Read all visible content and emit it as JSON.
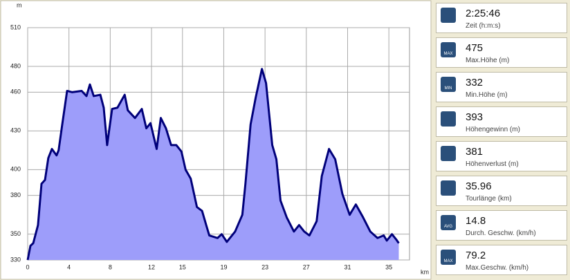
{
  "chart_data": {
    "type": "area",
    "y_unit": "m",
    "x_unit": "km",
    "x": [
      0,
      0.27,
      0.54,
      1.0,
      1.34,
      1.68,
      2.0,
      2.35,
      2.8,
      3.0,
      3.35,
      3.82,
      4.3,
      5.23,
      5.7,
      6.03,
      6.4,
      7.04,
      7.37,
      7.7,
      8.18,
      8.7,
      9.4,
      9.7,
      10.4,
      11.06,
      11.5,
      11.9,
      12.5,
      12.9,
      13.4,
      13.9,
      14.4,
      14.9,
      15.3,
      15.8,
      16.4,
      16.9,
      17.3,
      17.6,
      18.4,
      18.8,
      19.3,
      20.1,
      20.8,
      21.1,
      21.6,
      22.1,
      22.7,
      23.1,
      23.7,
      24.1,
      24.5,
      25.1,
      25.8,
      26.3,
      26.8,
      27.3,
      28.0,
      28.5,
      29.2,
      29.8,
      30.5,
      31.2,
      31.8,
      32.5,
      33.2,
      33.9,
      34.5,
      34.8,
      35.3,
      35.7,
      35.96
    ],
    "values": [
      330,
      341,
      343,
      357,
      389,
      392,
      409,
      416,
      411,
      415,
      435,
      461,
      460,
      461,
      457,
      466,
      457,
      458,
      448,
      419,
      447,
      448,
      458,
      446,
      440,
      447,
      432,
      436,
      416,
      440,
      432,
      419,
      419,
      414,
      400,
      393,
      371,
      368,
      357,
      349,
      347,
      350,
      344,
      352,
      365,
      389,
      435,
      456,
      478,
      467,
      419,
      408,
      376,
      363,
      352,
      357,
      352,
      349,
      360,
      395,
      416,
      408,
      381,
      365,
      373,
      363,
      352,
      347,
      349,
      345,
      350,
      346,
      343
    ],
    "color": "#00007a",
    "fill": "#9d9dfa",
    "xlim": [
      0,
      37
    ],
    "ylim": [
      330,
      510
    ],
    "xticks": [
      0,
      4,
      8,
      12,
      15,
      19,
      23,
      27,
      31,
      35
    ],
    "yticks": [
      330,
      350,
      380,
      400,
      430,
      460,
      480,
      510
    ],
    "grid": true
  },
  "stats": [
    {
      "value": "2:25:46",
      "label": "Zeit (h:m:s)"
    },
    {
      "value": "475",
      "label": "Max.Höhe (m)",
      "badge": "MAX"
    },
    {
      "value": "332",
      "label": "Min.Höhe (m)",
      "badge": "MIN"
    },
    {
      "value": "393",
      "label": "Höhengewinn (m)"
    },
    {
      "value": "381",
      "label": "Höhenverlust (m)"
    },
    {
      "value": "35.96",
      "label": "Tourlänge (km)"
    },
    {
      "value": "14.8",
      "label": "Durch. Geschw. (km/h)",
      "badge": "AVG"
    },
    {
      "value": "79.2",
      "label": "Max.Geschw. (km/h)",
      "badge": "MAX"
    }
  ]
}
